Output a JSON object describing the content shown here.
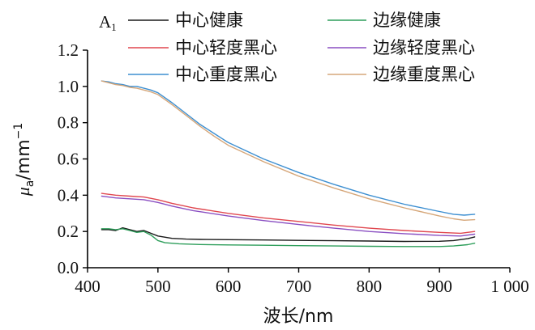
{
  "chart_data": {
    "type": "line",
    "panel_label": "A",
    "panel_label_sub": "1",
    "xlabel": "波长/nm",
    "ylabel_parts": {
      "mu": "μ",
      "sub": "a",
      "rest": "/mm",
      "sup": "−1"
    },
    "xlim": [
      400,
      1000
    ],
    "ylim": [
      0.0,
      1.2
    ],
    "x_ticks": [
      400,
      500,
      600,
      700,
      800,
      900,
      1000
    ],
    "x_tick_labels": [
      "400",
      "500",
      "600",
      "700",
      "800",
      "900",
      "1 000"
    ],
    "y_ticks": [
      0.0,
      0.2,
      0.4,
      0.6,
      0.8,
      1.0,
      1.2
    ],
    "y_tick_labels": [
      "0.0",
      "0.2",
      "0.4",
      "0.6",
      "0.8",
      "1.0",
      "1.2"
    ],
    "grid": false,
    "legend_position": "top-right",
    "series": [
      {
        "name": "中心健康",
        "color": "#1a1a1a",
        "points": [
          [
            420,
            0.21
          ],
          [
            430,
            0.21
          ],
          [
            440,
            0.205
          ],
          [
            450,
            0.22
          ],
          [
            460,
            0.21
          ],
          [
            470,
            0.2
          ],
          [
            480,
            0.205
          ],
          [
            490,
            0.19
          ],
          [
            500,
            0.175
          ],
          [
            520,
            0.162
          ],
          [
            540,
            0.158
          ],
          [
            560,
            0.156
          ],
          [
            600,
            0.155
          ],
          [
            650,
            0.153
          ],
          [
            700,
            0.151
          ],
          [
            750,
            0.149
          ],
          [
            800,
            0.147
          ],
          [
            850,
            0.145
          ],
          [
            900,
            0.146
          ],
          [
            920,
            0.15
          ],
          [
            940,
            0.16
          ],
          [
            950,
            0.17
          ]
        ]
      },
      {
        "name": "边缘健康",
        "color": "#2e9e5b",
        "points": [
          [
            420,
            0.215
          ],
          [
            430,
            0.215
          ],
          [
            440,
            0.21
          ],
          [
            450,
            0.215
          ],
          [
            460,
            0.205
          ],
          [
            470,
            0.195
          ],
          [
            480,
            0.2
          ],
          [
            490,
            0.18
          ],
          [
            500,
            0.15
          ],
          [
            510,
            0.138
          ],
          [
            530,
            0.132
          ],
          [
            560,
            0.128
          ],
          [
            600,
            0.126
          ],
          [
            650,
            0.124
          ],
          [
            700,
            0.122
          ],
          [
            750,
            0.12
          ],
          [
            800,
            0.118
          ],
          [
            850,
            0.117
          ],
          [
            900,
            0.117
          ],
          [
            920,
            0.12
          ],
          [
            940,
            0.127
          ],
          [
            950,
            0.135
          ]
        ]
      },
      {
        "name": "中心轻度黑心",
        "color": "#e0474f",
        "points": [
          [
            420,
            0.41
          ],
          [
            440,
            0.4
          ],
          [
            460,
            0.395
          ],
          [
            480,
            0.39
          ],
          [
            500,
            0.375
          ],
          [
            520,
            0.355
          ],
          [
            550,
            0.33
          ],
          [
            600,
            0.3
          ],
          [
            650,
            0.275
          ],
          [
            700,
            0.255
          ],
          [
            750,
            0.235
          ],
          [
            800,
            0.218
          ],
          [
            850,
            0.205
          ],
          [
            900,
            0.195
          ],
          [
            930,
            0.19
          ],
          [
            950,
            0.2
          ]
        ]
      },
      {
        "name": "边缘轻度黑心",
        "color": "#8a4fc2",
        "points": [
          [
            420,
            0.395
          ],
          [
            440,
            0.385
          ],
          [
            460,
            0.38
          ],
          [
            480,
            0.375
          ],
          [
            500,
            0.36
          ],
          [
            520,
            0.34
          ],
          [
            550,
            0.315
          ],
          [
            600,
            0.285
          ],
          [
            650,
            0.26
          ],
          [
            700,
            0.238
          ],
          [
            750,
            0.218
          ],
          [
            800,
            0.2
          ],
          [
            850,
            0.188
          ],
          [
            900,
            0.178
          ],
          [
            930,
            0.175
          ],
          [
            950,
            0.185
          ]
        ]
      },
      {
        "name": "中心重度黑心",
        "color": "#3d8fd1",
        "points": [
          [
            420,
            1.03
          ],
          [
            430,
            1.025
          ],
          [
            440,
            1.015
          ],
          [
            450,
            1.01
          ],
          [
            460,
            1.0
          ],
          [
            470,
            1.0
          ],
          [
            480,
            0.99
          ],
          [
            490,
            0.98
          ],
          [
            500,
            0.965
          ],
          [
            520,
            0.91
          ],
          [
            540,
            0.85
          ],
          [
            560,
            0.79
          ],
          [
            580,
            0.74
          ],
          [
            600,
            0.69
          ],
          [
            650,
            0.6
          ],
          [
            700,
            0.525
          ],
          [
            750,
            0.46
          ],
          [
            800,
            0.4
          ],
          [
            850,
            0.35
          ],
          [
            900,
            0.31
          ],
          [
            920,
            0.295
          ],
          [
            935,
            0.29
          ],
          [
            950,
            0.295
          ]
        ]
      },
      {
        "name": "边缘重度黑心",
        "color": "#d6a77a",
        "points": [
          [
            420,
            1.03
          ],
          [
            430,
            1.02
          ],
          [
            440,
            1.01
          ],
          [
            450,
            1.005
          ],
          [
            460,
            0.995
          ],
          [
            470,
            0.99
          ],
          [
            480,
            0.98
          ],
          [
            490,
            0.97
          ],
          [
            500,
            0.955
          ],
          [
            520,
            0.9
          ],
          [
            540,
            0.84
          ],
          [
            560,
            0.78
          ],
          [
            580,
            0.725
          ],
          [
            600,
            0.675
          ],
          [
            650,
            0.585
          ],
          [
            700,
            0.505
          ],
          [
            750,
            0.44
          ],
          [
            800,
            0.38
          ],
          [
            850,
            0.33
          ],
          [
            900,
            0.285
          ],
          [
            920,
            0.27
          ],
          [
            935,
            0.262
          ],
          [
            950,
            0.265
          ]
        ]
      }
    ]
  }
}
